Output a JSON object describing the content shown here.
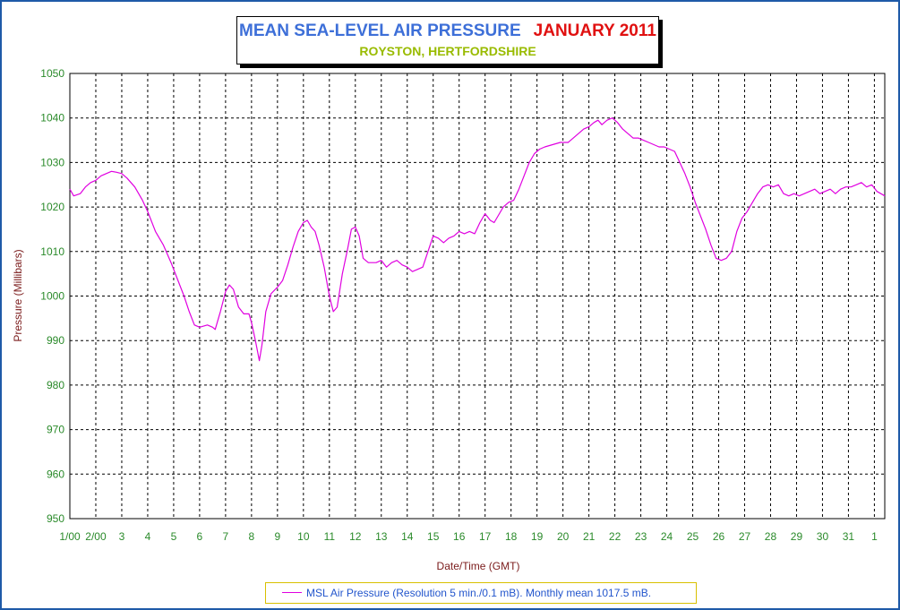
{
  "chart_data": {
    "type": "line",
    "title": "MEAN SEA-LEVEL AIR PRESSURE",
    "title_period": "JANUARY 2011",
    "subtitle": "ROYSTON, HERTFORDSHIRE",
    "xlabel": "Date/Time (GMT)",
    "ylabel": "Pressure (Millibars)",
    "ylim": [
      950,
      1050
    ],
    "yticks": [
      950,
      960,
      970,
      980,
      990,
      1000,
      1010,
      1020,
      1030,
      1040,
      1050
    ],
    "xlim": [
      1,
      32
    ],
    "xticks": [
      {
        "day": 1,
        "label": "1/00"
      },
      {
        "day": 2,
        "label": "2/00"
      },
      {
        "day": 3,
        "label": "3"
      },
      {
        "day": 4,
        "label": "4"
      },
      {
        "day": 5,
        "label": "5"
      },
      {
        "day": 6,
        "label": "6"
      },
      {
        "day": 7,
        "label": "7"
      },
      {
        "day": 8,
        "label": "8"
      },
      {
        "day": 9,
        "label": "9"
      },
      {
        "day": 10,
        "label": "10"
      },
      {
        "day": 11,
        "label": "11"
      },
      {
        "day": 12,
        "label": "12"
      },
      {
        "day": 13,
        "label": "13"
      },
      {
        "day": 14,
        "label": "14"
      },
      {
        "day": 15,
        "label": "15"
      },
      {
        "day": 16,
        "label": "16"
      },
      {
        "day": 17,
        "label": "17"
      },
      {
        "day": 18,
        "label": "18"
      },
      {
        "day": 19,
        "label": "19"
      },
      {
        "day": 20,
        "label": "20"
      },
      {
        "day": 21,
        "label": "21"
      },
      {
        "day": 22,
        "label": "22"
      },
      {
        "day": 23,
        "label": "23"
      },
      {
        "day": 24,
        "label": "24"
      },
      {
        "day": 25,
        "label": "25"
      },
      {
        "day": 26,
        "label": "26"
      },
      {
        "day": 27,
        "label": "27"
      },
      {
        "day": 28,
        "label": "28"
      },
      {
        "day": 29,
        "label": "29"
      },
      {
        "day": 30,
        "label": "30"
      },
      {
        "day": 31,
        "label": "31"
      },
      {
        "day": 32,
        "label": "1"
      }
    ],
    "grid": true,
    "legend_position": "bottom-center",
    "legend_label": "MSL Air Pressure (Resolution 5 min./0.1 mB). Monthly mean 1017.5 mB.",
    "series": [
      {
        "name": "MSL Air Pressure",
        "color": "#e000e0",
        "points": [
          [
            1.0,
            1024
          ],
          [
            1.15,
            1022.5
          ],
          [
            1.4,
            1023
          ],
          [
            1.6,
            1024.5
          ],
          [
            1.8,
            1025.5
          ],
          [
            2.0,
            1026
          ],
          [
            2.2,
            1027
          ],
          [
            2.4,
            1027.5
          ],
          [
            2.6,
            1028
          ],
          [
            2.8,
            1027.8
          ],
          [
            3.0,
            1027.5
          ],
          [
            3.2,
            1026.5
          ],
          [
            3.5,
            1024.5
          ],
          [
            3.8,
            1021.5
          ],
          [
            4.0,
            1019
          ],
          [
            4.3,
            1014.5
          ],
          [
            4.6,
            1011.5
          ],
          [
            4.9,
            1007.5
          ],
          [
            5.1,
            1004.5
          ],
          [
            5.4,
            1000
          ],
          [
            5.6,
            996.5
          ],
          [
            5.8,
            993.5
          ],
          [
            6.0,
            993
          ],
          [
            6.3,
            993.5
          ],
          [
            6.5,
            993
          ],
          [
            6.6,
            992.5
          ],
          [
            6.8,
            996.5
          ],
          [
            7.0,
            1001
          ],
          [
            7.15,
            1002.5
          ],
          [
            7.3,
            1001.5
          ],
          [
            7.5,
            997.5
          ],
          [
            7.7,
            996
          ],
          [
            7.9,
            996
          ],
          [
            8.0,
            994
          ],
          [
            8.15,
            990
          ],
          [
            8.3,
            985.5
          ],
          [
            8.4,
            989
          ],
          [
            8.55,
            996.5
          ],
          [
            8.75,
            1000.5
          ],
          [
            9.0,
            1002
          ],
          [
            9.2,
            1003.5
          ],
          [
            9.4,
            1007
          ],
          [
            9.6,
            1011
          ],
          [
            9.8,
            1014.5
          ],
          [
            10.0,
            1016.5
          ],
          [
            10.15,
            1017
          ],
          [
            10.3,
            1015.5
          ],
          [
            10.45,
            1014.5
          ],
          [
            10.6,
            1011.5
          ],
          [
            10.8,
            1006.5
          ],
          [
            11.0,
            1000
          ],
          [
            11.15,
            996.5
          ],
          [
            11.3,
            997.5
          ],
          [
            11.5,
            1005
          ],
          [
            11.7,
            1010.5
          ],
          [
            11.85,
            1015
          ],
          [
            12.0,
            1015.5
          ],
          [
            12.15,
            1013.5
          ],
          [
            12.3,
            1008.5
          ],
          [
            12.5,
            1007.5
          ],
          [
            12.8,
            1007.5
          ],
          [
            13.0,
            1008
          ],
          [
            13.2,
            1006.5
          ],
          [
            13.4,
            1007.5
          ],
          [
            13.6,
            1008
          ],
          [
            13.8,
            1007
          ],
          [
            14.0,
            1006.5
          ],
          [
            14.2,
            1005.5
          ],
          [
            14.4,
            1006
          ],
          [
            14.6,
            1006.5
          ],
          [
            14.8,
            1010
          ],
          [
            15.0,
            1013.5
          ],
          [
            15.2,
            1013
          ],
          [
            15.4,
            1012
          ],
          [
            15.6,
            1013
          ],
          [
            15.8,
            1013.5
          ],
          [
            16.0,
            1014.5
          ],
          [
            16.2,
            1014
          ],
          [
            16.4,
            1014.5
          ],
          [
            16.6,
            1014
          ],
          [
            16.8,
            1016.5
          ],
          [
            17.0,
            1018.5
          ],
          [
            17.2,
            1017
          ],
          [
            17.35,
            1016.5
          ],
          [
            17.5,
            1018
          ],
          [
            17.7,
            1020
          ],
          [
            17.9,
            1021
          ],
          [
            18.1,
            1021.5
          ],
          [
            18.3,
            1024
          ],
          [
            18.5,
            1027
          ],
          [
            18.7,
            1030
          ],
          [
            18.9,
            1032
          ],
          [
            19.1,
            1033
          ],
          [
            19.3,
            1033.5
          ],
          [
            19.6,
            1034
          ],
          [
            19.9,
            1034.5
          ],
          [
            20.2,
            1034.5
          ],
          [
            20.4,
            1035.5
          ],
          [
            20.6,
            1036.5
          ],
          [
            20.8,
            1037.5
          ],
          [
            21.0,
            1038
          ],
          [
            21.2,
            1039
          ],
          [
            21.35,
            1039.5
          ],
          [
            21.5,
            1038.5
          ],
          [
            21.7,
            1039.5
          ],
          [
            21.9,
            1040
          ],
          [
            22.1,
            1039
          ],
          [
            22.3,
            1037.5
          ],
          [
            22.5,
            1036.5
          ],
          [
            22.7,
            1035.5
          ],
          [
            22.9,
            1035.5
          ],
          [
            23.1,
            1035
          ],
          [
            23.3,
            1034.5
          ],
          [
            23.5,
            1034
          ],
          [
            23.7,
            1033.5
          ],
          [
            23.9,
            1033.5
          ],
          [
            24.1,
            1033
          ],
          [
            24.3,
            1032.5
          ],
          [
            24.5,
            1030
          ],
          [
            24.7,
            1027.5
          ],
          [
            24.9,
            1024.5
          ],
          [
            25.1,
            1021
          ],
          [
            25.3,
            1018
          ],
          [
            25.5,
            1015
          ],
          [
            25.7,
            1011.5
          ],
          [
            25.9,
            1008.5
          ],
          [
            26.1,
            1008
          ],
          [
            26.3,
            1008.5
          ],
          [
            26.5,
            1010
          ],
          [
            26.7,
            1014.5
          ],
          [
            26.9,
            1017.5
          ],
          [
            27.1,
            1019
          ],
          [
            27.3,
            1021
          ],
          [
            27.5,
            1023
          ],
          [
            27.7,
            1024.5
          ],
          [
            27.9,
            1025
          ],
          [
            28.1,
            1024.5
          ],
          [
            28.3,
            1025
          ],
          [
            28.5,
            1023
          ],
          [
            28.7,
            1022.5
          ],
          [
            28.9,
            1023
          ],
          [
            29.1,
            1022.5
          ],
          [
            29.3,
            1023
          ],
          [
            29.5,
            1023.5
          ],
          [
            29.7,
            1024
          ],
          [
            29.9,
            1023
          ],
          [
            30.1,
            1023.5
          ],
          [
            30.3,
            1024
          ],
          [
            30.5,
            1023
          ],
          [
            30.7,
            1024
          ],
          [
            30.9,
            1024.5
          ],
          [
            31.1,
            1024.5
          ],
          [
            31.3,
            1025
          ],
          [
            31.5,
            1025.5
          ],
          [
            31.7,
            1024.5
          ],
          [
            31.9,
            1025
          ],
          [
            32.1,
            1023.5
          ],
          [
            32.4,
            1022.5
          ]
        ]
      }
    ]
  }
}
